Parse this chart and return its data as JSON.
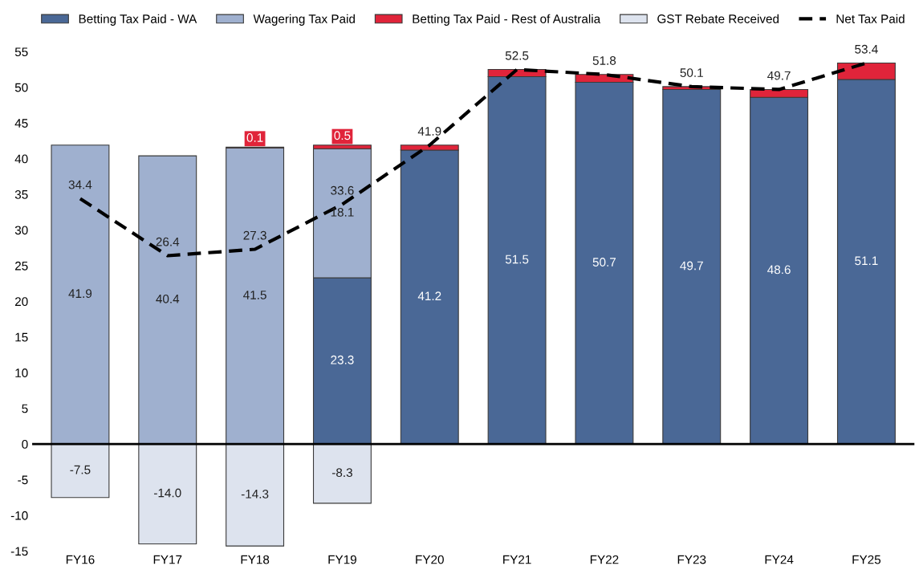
{
  "chart_data": {
    "type": "bar",
    "stacked": true,
    "categories": [
      "FY16",
      "FY17",
      "FY18",
      "FY19",
      "FY20",
      "FY21",
      "FY22",
      "FY23",
      "FY24",
      "FY25"
    ],
    "series": [
      {
        "name": "Betting Tax Paid - WA",
        "color": "#4a6896",
        "values": [
          null,
          null,
          null,
          23.3,
          41.2,
          51.5,
          50.7,
          49.7,
          48.6,
          51.1
        ],
        "value_labels": [
          null,
          null,
          null,
          "23.3",
          "41.2",
          "51.5",
          "50.7",
          "49.7",
          "48.6",
          "51.1"
        ]
      },
      {
        "name": "Wagering Tax Paid",
        "color": "#9fb0cf",
        "values": [
          41.9,
          40.4,
          41.5,
          18.1,
          null,
          null,
          null,
          null,
          null,
          null
        ],
        "value_labels": [
          "41.9",
          "40.4",
          "41.5",
          "18.1",
          null,
          null,
          null,
          null,
          null,
          null
        ]
      },
      {
        "name": "Betting Tax Paid - Rest of Australia",
        "color": "#e0243a",
        "values": [
          null,
          null,
          0.1,
          0.5,
          0.7,
          1.0,
          1.1,
          0.4,
          1.1,
          2.3
        ],
        "value_labels": [
          null,
          null,
          "0.1",
          "0.5",
          null,
          null,
          null,
          null,
          null,
          null
        ]
      },
      {
        "name": "GST Rebate Received",
        "color": "#dde3ee",
        "values": [
          -7.5,
          -14.0,
          -14.3,
          -8.3,
          null,
          null,
          null,
          null,
          null,
          null
        ],
        "value_labels": [
          "-7.5",
          "-14.0",
          "-14.3",
          "-8.3",
          null,
          null,
          null,
          null,
          null,
          null
        ]
      },
      {
        "name": "Net Tax Paid",
        "type": "line",
        "color": "#000000",
        "line_style": "dashed",
        "values": [
          34.4,
          26.4,
          27.3,
          33.6,
          41.9,
          52.5,
          51.8,
          50.1,
          49.7,
          53.4
        ],
        "value_labels": [
          "34.4",
          "26.4",
          "27.3",
          "33.6",
          "41.9",
          "52.5",
          "51.8",
          "50.1",
          "49.7",
          "53.4"
        ]
      }
    ],
    "ylim": [
      -15,
      55
    ],
    "yticks": [
      -15,
      -10,
      -5,
      0,
      5,
      10,
      15,
      20,
      25,
      30,
      35,
      40,
      45,
      50,
      55
    ],
    "ref_lines": [
      {
        "axis": "y",
        "value": 0,
        "color": "#000000"
      }
    ],
    "grid": false,
    "legend": "top"
  }
}
